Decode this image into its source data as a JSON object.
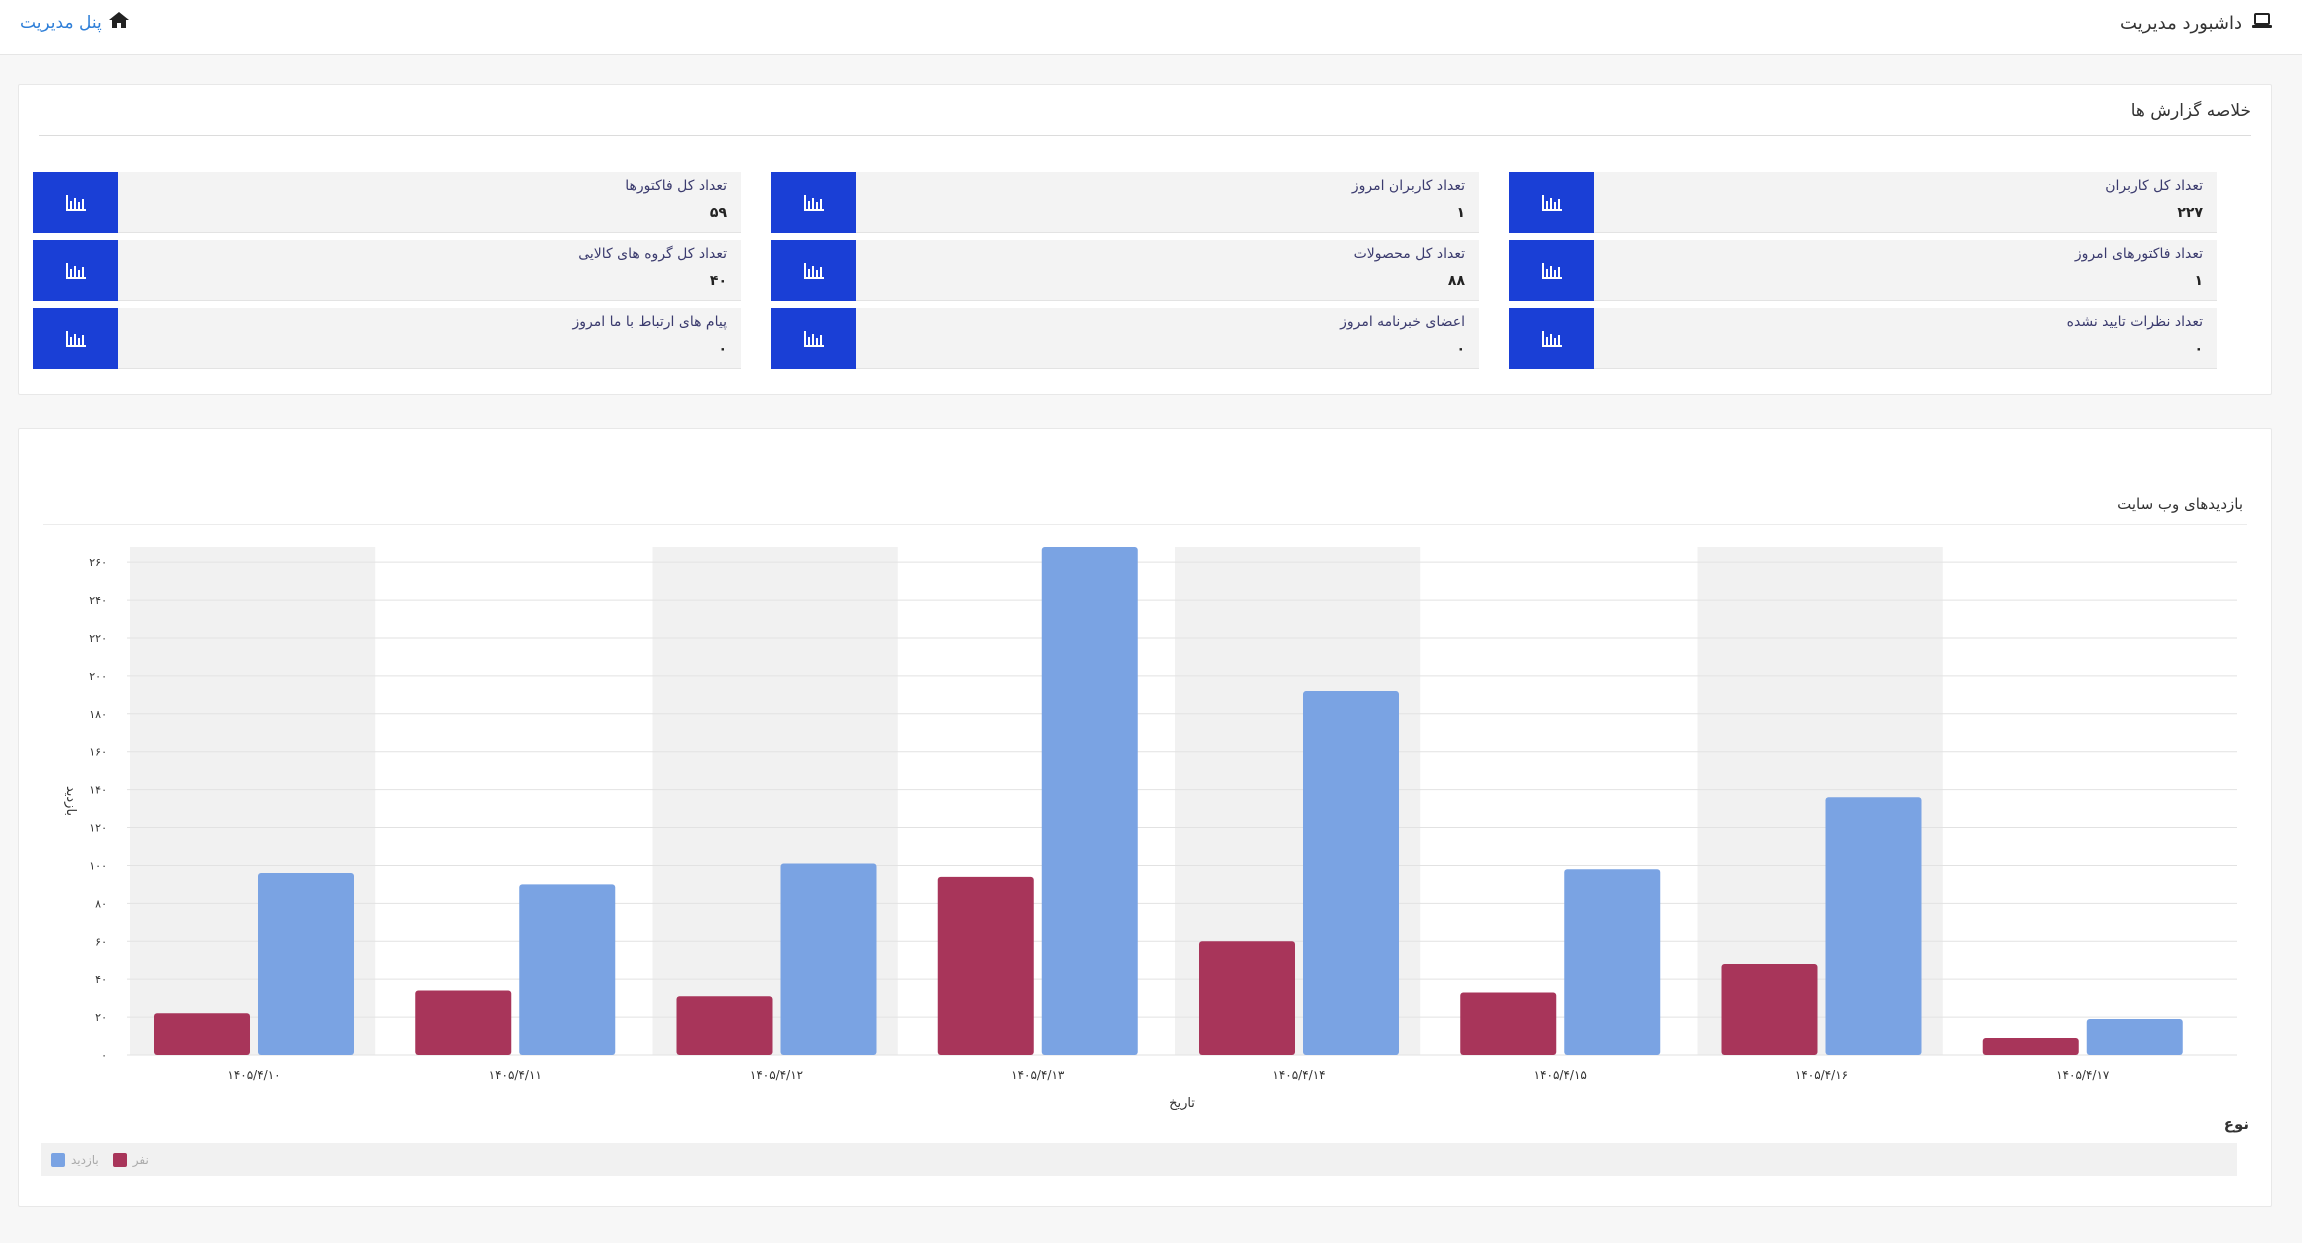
{
  "header": {
    "title": "داشبورد مدیریت",
    "title_icon": "laptop-icon",
    "home_link": "پنل مدیریت",
    "home_icon": "home-icon"
  },
  "summary": {
    "title": "خلاصه گزارش ها",
    "accent": "#1a3fd6",
    "stats": [
      {
        "label": "تعداد کل کاربران",
        "value": "۲۲۷",
        "icon": "bar-chart-icon"
      },
      {
        "label": "تعداد کاربران امروز",
        "value": "۱",
        "icon": "bar-chart-icon"
      },
      {
        "label": "تعداد کل فاکتورها",
        "value": "۵۹",
        "icon": "bar-chart-icon"
      },
      {
        "label": "تعداد فاکتورهای امروز",
        "value": "۱",
        "icon": "bar-chart-icon"
      },
      {
        "label": "تعداد کل محصولات",
        "value": "۸۸",
        "icon": "bar-chart-icon"
      },
      {
        "label": "تعداد کل گروه های کالایی",
        "value": "۴۰",
        "icon": "bar-chart-icon"
      },
      {
        "label": "تعداد نظرات تایید نشده",
        "value": "۰",
        "icon": "bar-chart-icon"
      },
      {
        "label": "اعضای خبرنامه امروز",
        "value": "۰",
        "icon": "bar-chart-icon"
      },
      {
        "label": "پیام های ارتباط با ما امروز",
        "value": "۰",
        "icon": "bar-chart-icon"
      }
    ]
  },
  "chart_section": {
    "title": "بازدیدهای وب سایت",
    "legend_title": "نوع"
  },
  "chart_data": {
    "type": "bar",
    "title": "بازدیدهای وب سایت",
    "xlabel": "تاریخ",
    "ylabel": "بازدید",
    "categories": [
      "۱۴۰۵/۴/۱۰",
      "۱۴۰۵/۴/۱۱",
      "۱۴۰۵/۴/۱۲",
      "۱۴۰۵/۴/۱۳",
      "۱۴۰۵/۴/۱۴",
      "۱۴۰۵/۴/۱۵",
      "۱۴۰۵/۴/۱۶",
      "۱۴۰۵/۴/۱۷"
    ],
    "series": [
      {
        "name": "نفر",
        "color": "#a8355a",
        "values": [
          22,
          34,
          31,
          94,
          60,
          33,
          48,
          9
        ]
      },
      {
        "name": "بازدید",
        "color": "#7aa3e3",
        "values": [
          96,
          90,
          101,
          268,
          192,
          98,
          136,
          19
        ]
      }
    ],
    "ylim": [
      0,
      268
    ],
    "yticks": [
      "۰",
      "۲۰",
      "۴۰",
      "۶۰",
      "۸۰",
      "۱۰۰",
      "۱۲۰",
      "۱۴۰",
      "۱۶۰",
      "۱۸۰",
      "۲۰۰",
      "۲۲۰",
      "۲۴۰",
      "۲۶۰"
    ],
    "ytick_values": [
      0,
      20,
      40,
      60,
      80,
      100,
      120,
      140,
      160,
      180,
      200,
      220,
      240,
      260
    ],
    "grid": true,
    "alternating_bands": true,
    "band_color": "#f1f1f1",
    "legend_position": "bottom-left"
  }
}
